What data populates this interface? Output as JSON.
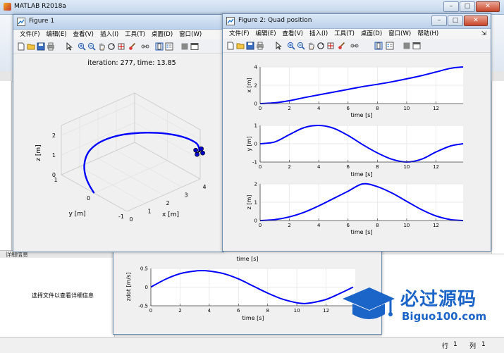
{
  "matlab": {
    "title": "MATLAB R2018a",
    "details_label": "详细信息",
    "details_text": "选择文件以查看详细信息",
    "status_row_label": "行",
    "status_row_value": "1",
    "status_col_label": "列",
    "status_col_value": "1"
  },
  "menu_items": [
    "文件(F)",
    "编辑(E)",
    "查看(V)",
    "插入(I)",
    "工具(T)",
    "桌面(D)",
    "窗口(W)",
    "帮助(H)"
  ],
  "figure1": {
    "title": "Figure 1",
    "plot_title": "iteration: 277, time: 13.85",
    "chart_data": {
      "type": "line",
      "subtype": "3d",
      "title": "iteration: 277, time: 13.85",
      "xlabel": "x [m]",
      "ylabel": "y [m]",
      "zlabel": "z [m]",
      "x_ticks": [
        "0",
        "1",
        "2",
        "3",
        "4"
      ],
      "y_ticks": [
        "-1",
        "0",
        "1"
      ],
      "z_ticks": [
        "0",
        "1",
        "2"
      ],
      "xlim": [
        0,
        4
      ],
      "ylim": [
        -1,
        1
      ],
      "zlim": [
        0,
        2.5
      ],
      "grid": true,
      "series": [
        {
          "color": "#0000ff",
          "x": [
            0.0,
            0.22,
            0.45,
            0.7,
            0.97,
            1.25,
            1.53,
            1.82,
            2.1,
            2.37,
            2.62,
            2.84,
            3.04,
            3.22,
            3.38,
            3.52,
            3.65,
            3.76,
            3.86,
            3.93,
            4.0
          ],
          "y": [
            0.0,
            0.25,
            0.48,
            0.68,
            0.84,
            0.95,
            1.0,
            0.98,
            0.9,
            0.76,
            0.57,
            0.35,
            0.12,
            -0.12,
            -0.35,
            -0.57,
            -0.76,
            -0.9,
            -0.98,
            -1.0,
            -0.97
          ],
          "z": [
            0.0,
            0.02,
            0.07,
            0.15,
            0.27,
            0.41,
            0.58,
            0.77,
            0.96,
            1.16,
            1.36,
            1.54,
            1.7,
            1.84,
            1.94,
            2.0,
            2.0,
            1.94,
            1.82,
            1.62,
            1.36
          ]
        }
      ]
    }
  },
  "figure2": {
    "title": "Figure 2: Quad position",
    "chart_data": [
      {
        "type": "line",
        "xlabel": "time [s]",
        "ylabel": "x [m]",
        "xlim": [
          0,
          13.85
        ],
        "ylim": [
          0,
          4
        ],
        "x_ticks": [
          "0",
          "2",
          "4",
          "6",
          "8",
          "10",
          "12"
        ],
        "y_ticks": [
          "0",
          "2",
          "4"
        ],
        "series": [
          {
            "color": "#0000ff",
            "x": [
              0,
              1,
              2,
              3,
              4,
              5,
              6,
              7,
              8,
              9,
              10,
              11,
              12,
              13,
              13.85
            ],
            "y": [
              0.0,
              0.09,
              0.32,
              0.65,
              0.95,
              1.25,
              1.55,
              1.85,
              2.1,
              2.38,
              2.7,
              3.05,
              3.45,
              3.85,
              4.0
            ]
          }
        ]
      },
      {
        "type": "line",
        "xlabel": "time [s]",
        "ylabel": "y [m]",
        "xlim": [
          0,
          13.85
        ],
        "ylim": [
          -1,
          1
        ],
        "x_ticks": [
          "0",
          "2",
          "4",
          "6",
          "8",
          "10",
          "12"
        ],
        "y_ticks": [
          "-1",
          "0",
          "1"
        ],
        "series": [
          {
            "color": "#0000ff",
            "x": [
              0,
              1,
              2,
              3,
              4,
              5,
              6,
              7,
              8,
              9,
              10,
              11,
              12,
              13,
              13.85
            ],
            "y": [
              0.0,
              0.1,
              0.5,
              0.88,
              1.0,
              0.85,
              0.45,
              -0.05,
              -0.5,
              -0.85,
              -1.0,
              -0.85,
              -0.45,
              -0.12,
              0.0
            ]
          }
        ]
      },
      {
        "type": "line",
        "xlabel": "time [s]",
        "ylabel": "z [m]",
        "xlim": [
          0,
          13.85
        ],
        "ylim": [
          0,
          2
        ],
        "x_ticks": [
          "0",
          "2",
          "4",
          "6",
          "8",
          "10",
          "12"
        ],
        "y_ticks": [
          "0",
          "1",
          "2"
        ],
        "series": [
          {
            "color": "#0000ff",
            "x": [
              0,
              1,
              2,
              3,
              4,
              5,
              6,
              7,
              8,
              9,
              10,
              11,
              12,
              13,
              13.85
            ],
            "y": [
              0.0,
              0.05,
              0.2,
              0.45,
              0.8,
              1.2,
              1.6,
              2.0,
              1.85,
              1.5,
              1.05,
              0.6,
              0.25,
              0.05,
              0.0
            ]
          }
        ]
      }
    ]
  },
  "figure3": {
    "top_xlabel": "time [s]",
    "chart_data": {
      "type": "line",
      "xlabel": "time [s]",
      "ylabel": "zdot [m/s]",
      "xlim": [
        0,
        14
      ],
      "ylim": [
        -0.5,
        0.5
      ],
      "x_ticks": [
        "0",
        "2",
        "4",
        "6",
        "8",
        "10",
        "12"
      ],
      "y_ticks": [
        "-0.5",
        "0",
        "0.5"
      ],
      "series": [
        {
          "color": "#0000ff",
          "x": [
            0,
            1,
            2,
            3,
            3.5,
            4,
            5,
            6,
            7,
            8,
            9,
            10,
            10.5,
            11,
            12,
            13,
            13.85
          ],
          "y": [
            0.0,
            0.21,
            0.36,
            0.43,
            0.44,
            0.43,
            0.36,
            0.22,
            0.03,
            -0.16,
            -0.32,
            -0.42,
            -0.44,
            -0.42,
            -0.33,
            -0.16,
            0.0
          ]
        }
      ]
    }
  },
  "watermark": {
    "title": "必过源码",
    "url": "Biguo100.com"
  }
}
